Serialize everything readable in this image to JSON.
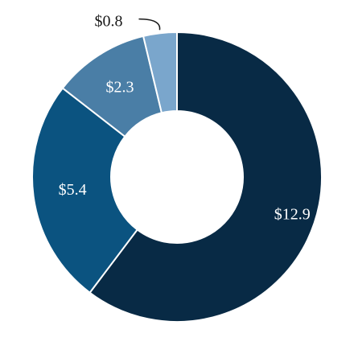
{
  "chart_data": {
    "type": "donut",
    "categories": [
      null,
      null,
      null,
      null
    ],
    "values": [
      12.9,
      5.4,
      2.3,
      0.8
    ],
    "value_labels": [
      "$12.9",
      "$5.4",
      "$2.3",
      "$0.8"
    ],
    "colors": [
      "#082a45",
      "#0b5380",
      "#4a7ea6",
      "#7aa6cc"
    ]
  }
}
